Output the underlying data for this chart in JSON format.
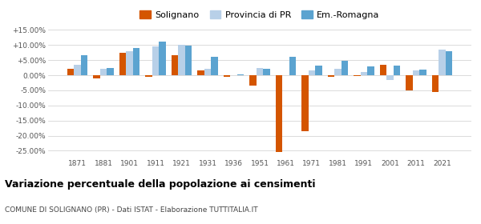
{
  "years": [
    1871,
    1881,
    1901,
    1911,
    1921,
    1931,
    1936,
    1951,
    1961,
    1971,
    1981,
    1991,
    2001,
    2011,
    2021
  ],
  "solignano": [
    2.0,
    -1.0,
    7.5,
    -0.5,
    6.5,
    1.5,
    -0.5,
    -3.5,
    -25.5,
    -18.5,
    -0.5,
    -0.3,
    3.5,
    -5.0,
    -5.5
  ],
  "provincia": [
    3.5,
    2.0,
    8.0,
    9.5,
    10.0,
    2.0,
    0.0,
    2.5,
    0.0,
    1.5,
    2.0,
    1.0,
    -1.5,
    1.5,
    8.5
  ],
  "emilia": [
    6.5,
    2.5,
    9.0,
    11.0,
    9.8,
    6.0,
    0.2,
    2.2,
    6.2,
    3.2,
    4.7,
    3.0,
    3.2,
    1.8,
    8.0
  ],
  "color_solignano": "#d45500",
  "color_provincia": "#b8d0e8",
  "color_emilia": "#5ba3d0",
  "title": "Variazione percentuale della popolazione ai censimenti",
  "subtitle": "COMUNE DI SOLIGNANO (PR) - Dati ISTAT - Elaborazione TUTTITALIA.IT",
  "ylim": [
    -27,
    16
  ],
  "yticks": [
    -25,
    -20,
    -15,
    -10,
    -5,
    0,
    5,
    10,
    15
  ],
  "legend_labels": [
    "Solignano",
    "Provincia di PR",
    "Em.-Romagna"
  ]
}
